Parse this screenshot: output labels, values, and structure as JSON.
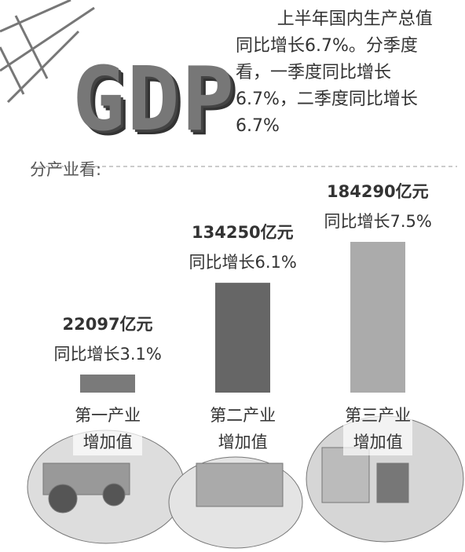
{
  "chart_data": {
    "type": "bar",
    "title": "GDP",
    "annotation": "上半年国内生产总值同比增长6.7%。分季度看，一季度同比增长6.7%，二季度同比增长6.7%",
    "subtitle": "分产业看:",
    "categories": [
      "第一产业增加值",
      "第二产业增加值",
      "第三产业增加值"
    ],
    "values": [
      22097,
      134250,
      184290
    ],
    "value_labels": [
      "22097亿元",
      "134250亿元",
      "184290亿元"
    ],
    "growth_labels": [
      "同比增长3.1%",
      "同比增长6.1%",
      "同比增长7.5%"
    ],
    "colors": [
      "#7a7a7a",
      "#666666",
      "#ababab"
    ]
  }
}
